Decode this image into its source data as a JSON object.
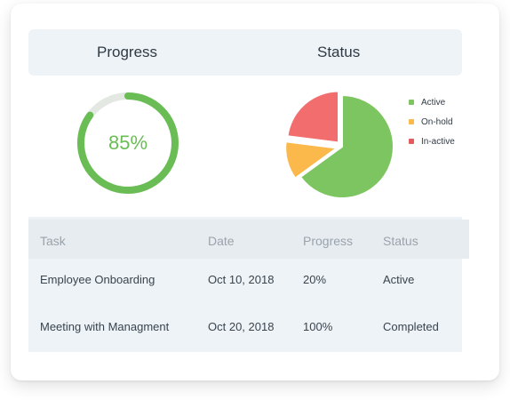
{
  "progress": {
    "title": "Progress",
    "value_label": "85%",
    "percent": 85,
    "color": "#6abd54",
    "track_color": "#e3e8e3"
  },
  "status": {
    "title": "Status",
    "legend": [
      {
        "label": "Active",
        "color": "#7dc560"
      },
      {
        "label": "On-hold",
        "color": "#fbb84b"
      },
      {
        "label": "In-active",
        "color": "#e55a5e"
      }
    ]
  },
  "chart_data": {
    "type": "pie",
    "categories": [
      "Active",
      "On-hold",
      "In-active"
    ],
    "values": [
      65,
      12,
      23
    ],
    "colors": [
      "#7dc560",
      "#fbb84b",
      "#f26e6e"
    ],
    "title": "Status"
  },
  "table": {
    "headers": [
      "Task",
      "Date",
      "Progress",
      "Status"
    ],
    "rows": [
      [
        "Employee Onboarding",
        "Oct 10, 2018",
        "20%",
        "Active"
      ],
      [
        "Meeting with Managment",
        "Oct 20, 2018",
        "100%",
        "Completed"
      ]
    ]
  }
}
